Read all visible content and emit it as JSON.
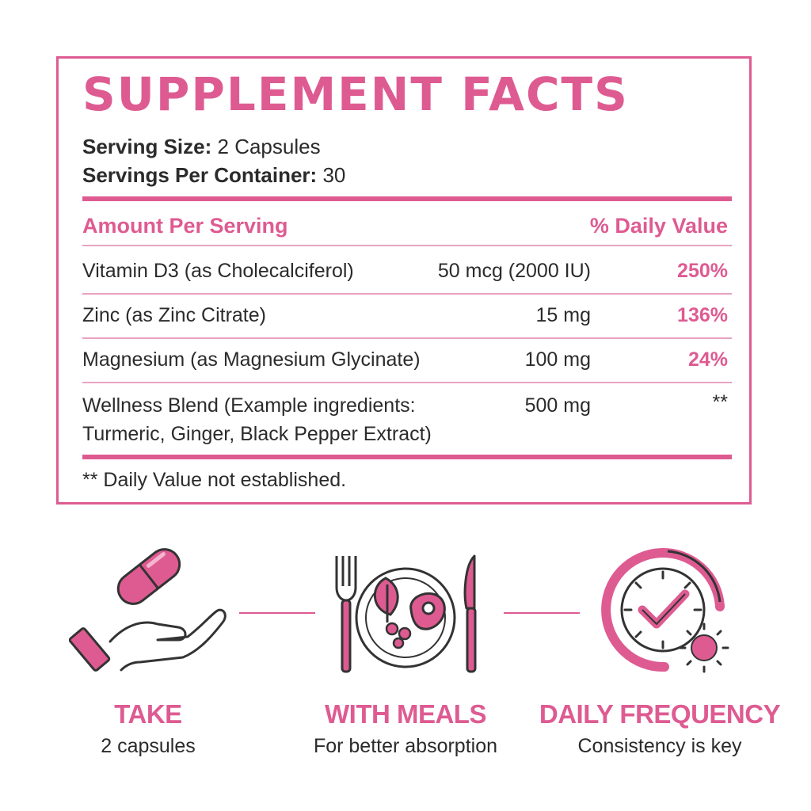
{
  "facts": {
    "title": "SUPPLEMENT FACTS",
    "serving_size_label": "Serving Size:",
    "serving_size_value": "2 Capsules",
    "servings_per_container_label": "Servings Per Container:",
    "servings_per_container_value": "30",
    "col_amount": "Amount Per Serving",
    "col_daily_value": "% Daily Value",
    "rows": [
      {
        "name": "Vitamin D3 (as Cholecalciferol)",
        "amount": "50 mcg (2000 IU)",
        "dv": "250%"
      },
      {
        "name": "Zinc (as Zinc Citrate)",
        "amount": "15 mg",
        "dv": "136%"
      },
      {
        "name": "Magnesium (as Magnesium Glycinate)",
        "amount": "100 mg",
        "dv": "24%"
      },
      {
        "name_line1": "Wellness Blend (Example ingredients:",
        "name_line2": "Turmeric, Ginger, Black Pepper Extract)",
        "amount": "500 mg",
        "dv": "**"
      }
    ],
    "footnote": "** Daily Value not established."
  },
  "steps": [
    {
      "title": "TAKE",
      "subtitle": "2 capsules",
      "icon": "hand-capsule-icon"
    },
    {
      "title": "WITH MEALS",
      "subtitle": "For better absorption",
      "icon": "plate-fork-knife-icon"
    },
    {
      "title": "DAILY FREQUENCY",
      "subtitle": "Consistency is key",
      "icon": "clock-sun-icon"
    }
  ],
  "colors": {
    "accent": "#de5b92",
    "text": "#2b2b2b",
    "icon_line": "#333333"
  }
}
